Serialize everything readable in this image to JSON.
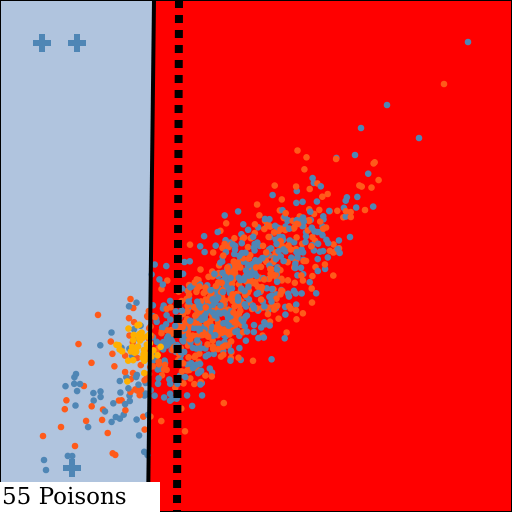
{
  "hud": {
    "status_text": "55 Poisons"
  },
  "colors": {
    "safe_zone": "#b0c4de",
    "danger_zone": "#ff0000",
    "border_line": "#000000",
    "dot_blue": "#4f86b5",
    "dot_orange": "#ff5a1a",
    "dot_yellow": "#ffb000",
    "plus_marker": "#4f86b5",
    "label_bg": "#ffffff"
  },
  "icons": {
    "marker": "plus-icon"
  }
}
